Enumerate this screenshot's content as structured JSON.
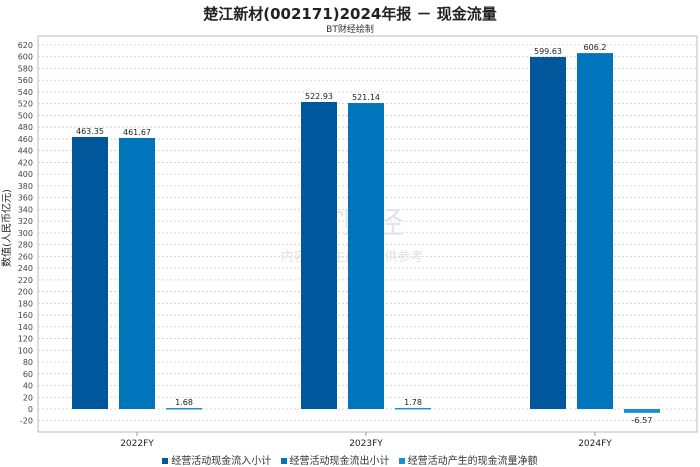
{
  "chart_data": {
    "type": "bar",
    "title": "楚江新材(002171)2024年报 － 现金流量",
    "subtitle": "BT财经绘制",
    "xlabel": "",
    "ylabel": "数值(人民币亿元)",
    "categories": [
      "2022FY",
      "2023FY",
      "2024FY"
    ],
    "series": [
      {
        "name": "经营活动现金流入小计",
        "color": "#00579b",
        "values": [
          463.35,
          522.93,
          599.63
        ],
        "labels": [
          "463.35",
          "522.93",
          "599.63"
        ]
      },
      {
        "name": "经营活动现金流出小计",
        "color": "#0075bb",
        "values": [
          461.67,
          521.14,
          606.2
        ],
        "labels": [
          "461.67",
          "521.14",
          "606.2"
        ]
      },
      {
        "name": "经营活动产生的现金流量净额",
        "color": "#1a8fd6",
        "values": [
          1.68,
          1.78,
          -6.57
        ],
        "labels": [
          "1.68",
          "1.78",
          "-6.57"
        ]
      }
    ],
    "yticks": [
      -20,
      0,
      20,
      40,
      60,
      80,
      100,
      120,
      140,
      160,
      180,
      200,
      220,
      240,
      260,
      280,
      300,
      320,
      340,
      360,
      380,
      400,
      420,
      440,
      460,
      480,
      500,
      520,
      540,
      560,
      580,
      600,
      620
    ],
    "ylim": [
      -40,
      636
    ],
    "grid": true,
    "legend_position": "bottom",
    "watermark": "BT财经 BUSINESS TIMES 内容由AI生成，仅供参考"
  }
}
